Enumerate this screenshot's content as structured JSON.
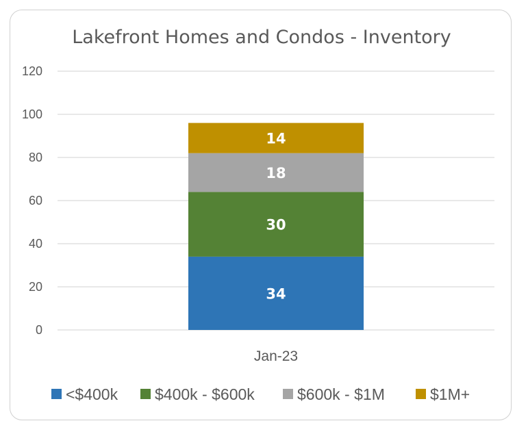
{
  "chart_data": {
    "type": "bar",
    "stacked": true,
    "title": "Lakefront Homes and Condos - Inventory",
    "categories": [
      "Jan-23"
    ],
    "series": [
      {
        "name": "<$400k",
        "values": [
          34
        ],
        "color": "#2e75b6"
      },
      {
        "name": "$400k - $600k",
        "values": [
          30
        ],
        "color": "#548235"
      },
      {
        "name": "$600k - $1M",
        "values": [
          18
        ],
        "color": "#a5a5a5"
      },
      {
        "name": "$1M+",
        "values": [
          14
        ],
        "color": "#bf9000"
      }
    ],
    "y_ticks": [
      "0",
      "20",
      "40",
      "60",
      "80",
      "100",
      "120"
    ],
    "ylim": [
      0,
      120
    ],
    "grid": true,
    "legend_position": "bottom"
  }
}
